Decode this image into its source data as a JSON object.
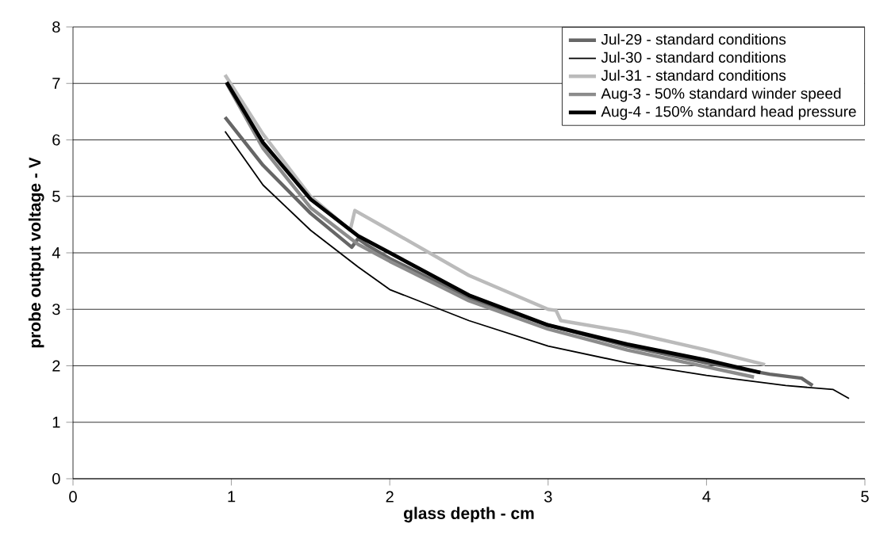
{
  "chart_data": {
    "type": "line",
    "xlabel": "glass depth - cm",
    "ylabel": "probe output voltage - V",
    "xlim": [
      0,
      5
    ],
    "ylim": [
      0,
      8
    ],
    "xticks": [
      0,
      1,
      2,
      3,
      4,
      5
    ],
    "yticks": [
      0,
      1,
      2,
      3,
      4,
      5,
      6,
      7,
      8
    ],
    "grid": "y",
    "legend": "top right",
    "marker": "none",
    "line_style": "solid",
    "series": [
      {
        "name": "Jul-29 - standard conditions",
        "color": "#666666",
        "x": [
          0.96,
          1.2,
          1.5,
          1.76,
          1.8,
          1.85,
          2,
          2.5,
          3,
          3.5,
          4,
          4.4,
          4.6,
          4.67
        ],
        "values": [
          6.4,
          5.55,
          4.7,
          4.1,
          4.25,
          4.15,
          3.9,
          3.2,
          2.72,
          2.35,
          2.05,
          1.85,
          1.78,
          1.65
        ]
      },
      {
        "name": "Jul-30 - standard conditions",
        "color": "#000000",
        "x": [
          0.96,
          1.2,
          1.5,
          1.8,
          2,
          2.5,
          3,
          3.5,
          4,
          4.5,
          4.8,
          4.9
        ],
        "values": [
          6.15,
          5.2,
          4.4,
          3.75,
          3.35,
          2.8,
          2.35,
          2.05,
          1.83,
          1.65,
          1.58,
          1.42
        ]
      },
      {
        "name": "Jul-31 - standard conditions",
        "color": "#bbbbbb",
        "x": [
          0.96,
          1.2,
          1.5,
          1.75,
          1.78,
          2,
          2.5,
          3,
          3.05,
          3.08,
          3.5,
          4,
          4.37
        ],
        "values": [
          7.15,
          6.1,
          5.0,
          4.4,
          4.75,
          4.4,
          3.6,
          3.0,
          2.98,
          2.8,
          2.6,
          2.28,
          2.02
        ]
      },
      {
        "name": "Aug-3 - 50% standard winder speed",
        "color": "#8c8c8c",
        "x": [
          0.97,
          1.2,
          1.5,
          1.8,
          2,
          2.5,
          3,
          3.5,
          4,
          4.3
        ],
        "values": [
          7.0,
          5.85,
          4.8,
          4.15,
          3.85,
          3.15,
          2.65,
          2.28,
          1.98,
          1.8
        ]
      },
      {
        "name": "Aug-4 - 150% standard head pressure",
        "color": "#000000",
        "x": [
          0.97,
          1.2,
          1.5,
          1.8,
          2,
          2.5,
          3,
          3.5,
          4,
          4.34
        ],
        "values": [
          7.02,
          5.95,
          4.95,
          4.3,
          4.0,
          3.25,
          2.72,
          2.38,
          2.1,
          1.88
        ]
      }
    ]
  }
}
